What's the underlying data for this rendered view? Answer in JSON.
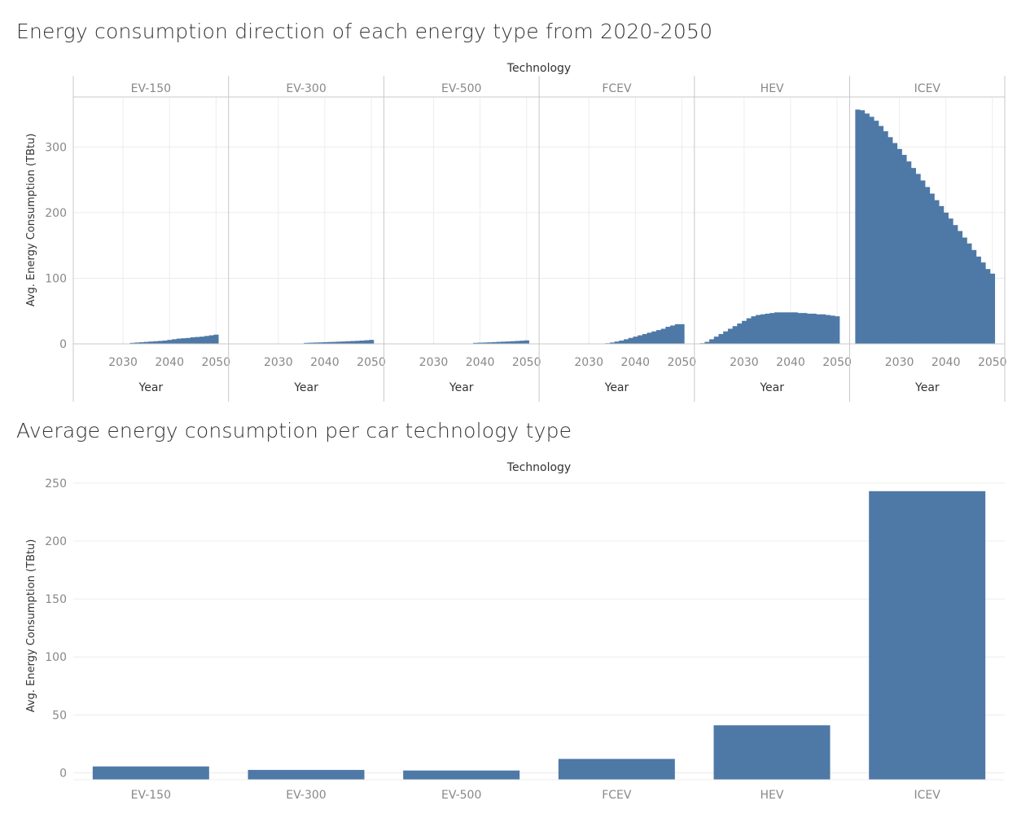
{
  "chart_data": [
    {
      "type": "bar",
      "title": "Energy consumption direction of each energy type from 2020-2050",
      "column_header": "Technology",
      "xlabel": "Year",
      "ylabel": "Avg. Energy Consumption (TBtu)",
      "x_ticks": [
        2030,
        2040,
        2050
      ],
      "y_ticks": [
        0,
        100,
        200,
        300
      ],
      "xlim": [
        2020,
        2052
      ],
      "ylim": [
        0,
        375
      ],
      "facets": [
        {
          "name": "EV-150",
          "x": [
            2021,
            2022,
            2023,
            2024,
            2025,
            2026,
            2027,
            2028,
            2029,
            2030,
            2031,
            2032,
            2033,
            2034,
            2035,
            2036,
            2037,
            2038,
            2039,
            2040,
            2041,
            2042,
            2043,
            2044,
            2045,
            2046,
            2047,
            2048,
            2049,
            2050
          ],
          "values": [
            0,
            0,
            0,
            0,
            0,
            0,
            0,
            0,
            0,
            0,
            0,
            1.5,
            2,
            2.5,
            3,
            3.5,
            4,
            4.5,
            5,
            6,
            7,
            8,
            8.5,
            9,
            10,
            10.5,
            11,
            12,
            13,
            14
          ]
        },
        {
          "name": "EV-300",
          "x": [
            2021,
            2022,
            2023,
            2024,
            2025,
            2026,
            2027,
            2028,
            2029,
            2030,
            2031,
            2032,
            2033,
            2034,
            2035,
            2036,
            2037,
            2038,
            2039,
            2040,
            2041,
            2042,
            2043,
            2044,
            2045,
            2046,
            2047,
            2048,
            2049,
            2050
          ],
          "values": [
            0,
            0,
            0,
            0,
            0,
            0,
            0,
            0,
            0,
            0,
            0,
            0,
            0,
            0,
            0,
            1.5,
            1.8,
            2,
            2.2,
            2.5,
            2.8,
            3,
            3.3,
            3.6,
            4,
            4.3,
            4.6,
            5,
            5.5,
            6
          ]
        },
        {
          "name": "EV-500",
          "x": [
            2021,
            2022,
            2023,
            2024,
            2025,
            2026,
            2027,
            2028,
            2029,
            2030,
            2031,
            2032,
            2033,
            2034,
            2035,
            2036,
            2037,
            2038,
            2039,
            2040,
            2041,
            2042,
            2043,
            2044,
            2045,
            2046,
            2047,
            2048,
            2049,
            2050
          ],
          "values": [
            0,
            0,
            0,
            0,
            0,
            0,
            0,
            0,
            0,
            0,
            0,
            0,
            0,
            0,
            0,
            0,
            0,
            0,
            1.5,
            1.8,
            2,
            2.3,
            2.6,
            3,
            3.3,
            3.6,
            4,
            4.4,
            4.8,
            5.3
          ]
        },
        {
          "name": "FCEV",
          "x": [
            2021,
            2022,
            2023,
            2024,
            2025,
            2026,
            2027,
            2028,
            2029,
            2030,
            2031,
            2032,
            2033,
            2034,
            2035,
            2036,
            2037,
            2038,
            2039,
            2040,
            2041,
            2042,
            2043,
            2044,
            2045,
            2046,
            2047,
            2048,
            2049,
            2050
          ],
          "values": [
            0,
            0,
            0,
            0,
            0,
            0,
            0,
            0,
            0,
            0,
            0,
            0,
            0,
            1,
            2,
            3.5,
            5,
            7,
            9,
            11,
            13,
            15,
            17,
            19,
            21,
            23,
            26,
            28,
            30,
            30
          ]
        },
        {
          "name": "HEV",
          "x": [
            2021,
            2022,
            2023,
            2024,
            2025,
            2026,
            2027,
            2028,
            2029,
            2030,
            2031,
            2032,
            2033,
            2034,
            2035,
            2036,
            2037,
            2038,
            2039,
            2040,
            2041,
            2042,
            2043,
            2044,
            2045,
            2046,
            2047,
            2048,
            2049,
            2050
          ],
          "values": [
            1,
            3,
            7,
            11,
            15,
            19,
            23,
            27,
            31,
            35,
            39,
            42,
            44,
            45,
            46,
            47,
            48,
            48,
            48,
            48,
            48,
            47,
            47,
            46,
            46,
            45,
            45,
            44,
            43,
            42
          ]
        },
        {
          "name": "ICEV",
          "x": [
            2021,
            2022,
            2023,
            2024,
            2025,
            2026,
            2027,
            2028,
            2029,
            2030,
            2031,
            2032,
            2033,
            2034,
            2035,
            2036,
            2037,
            2038,
            2039,
            2040,
            2041,
            2042,
            2043,
            2044,
            2045,
            2046,
            2047,
            2048,
            2049,
            2050
          ],
          "values": [
            357,
            356,
            351,
            346,
            340,
            332,
            324,
            315,
            306,
            297,
            288,
            278,
            268,
            259,
            249,
            239,
            229,
            219,
            210,
            200,
            191,
            181,
            172,
            162,
            153,
            143,
            133,
            124,
            114,
            107
          ]
        }
      ]
    },
    {
      "type": "bar",
      "title": "Average energy consumption per car technology type",
      "column_header": "Technology",
      "ylabel": "Avg. Energy Consumption (TBtu)",
      "y_ticks": [
        0,
        50,
        100,
        150,
        200,
        250
      ],
      "ylim": [
        -6,
        252
      ],
      "categories": [
        "EV-150",
        "EV-300",
        "EV-500",
        "FCEV",
        "HEV",
        "ICEV"
      ],
      "values": [
        5.5,
        2.5,
        2,
        12,
        41,
        243
      ]
    }
  ],
  "colors": {
    "bar": "#4e79a7",
    "grid": "#ececec",
    "divider": "#c8c8c8",
    "tick_text": "#888888",
    "label_text": "#333333"
  }
}
